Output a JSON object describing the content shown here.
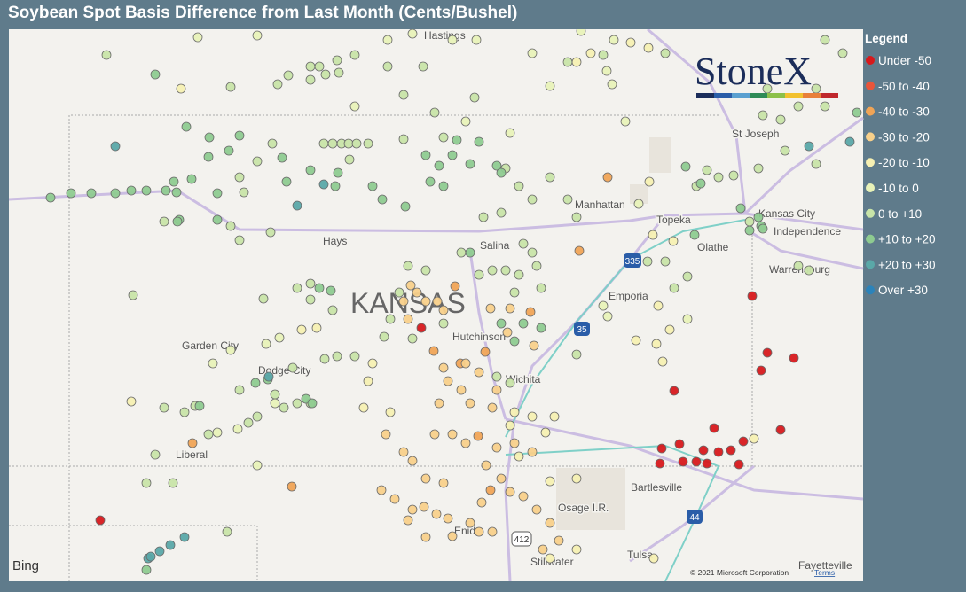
{
  "title": "Soybean Spot Basis Difference from Last Month (Cents/Bushel)",
  "legend": {
    "title": "Legend",
    "items": [
      {
        "label": "Under -50",
        "color": "#d7191c"
      },
      {
        "label": "-50 to -40",
        "color": "#e8553a"
      },
      {
        "label": "-40 to -30",
        "color": "#f0a456"
      },
      {
        "label": "-30 to -20",
        "color": "#f8d08a"
      },
      {
        "label": "-20 to -10",
        "color": "#f6f0b2"
      },
      {
        "label": "-10 to 0",
        "color": "#e8f2b8"
      },
      {
        "label": "0 to +10",
        "color": "#c8e4a8"
      },
      {
        "label": "+10 to +20",
        "color": "#8ecb90"
      },
      {
        "label": "+20 to +30",
        "color": "#5aa8a8"
      },
      {
        "label": "Over +30",
        "color": "#2b83ba"
      }
    ]
  },
  "map_labels": [
    "KANSAS",
    "Hastings",
    "St Joseph",
    "Manhattan",
    "Topeka",
    "Kansas City",
    "Independence",
    "Hays",
    "Salina",
    "Olathe",
    "Warrensburg",
    "Emporia",
    "Garden City",
    "Hutchinson",
    "Dodge City",
    "Wichita",
    "Liberal",
    "Bartlesville",
    "Osage I.R.",
    "Enid",
    "Tulsa",
    "Stillwater",
    "Fayetteville",
    "335",
    "35",
    "412",
    "44"
  ],
  "logo": "StoneX",
  "bing": "Bing",
  "copyright": "© 2021 Microsoft Corporation",
  "terms": "Terms"
}
